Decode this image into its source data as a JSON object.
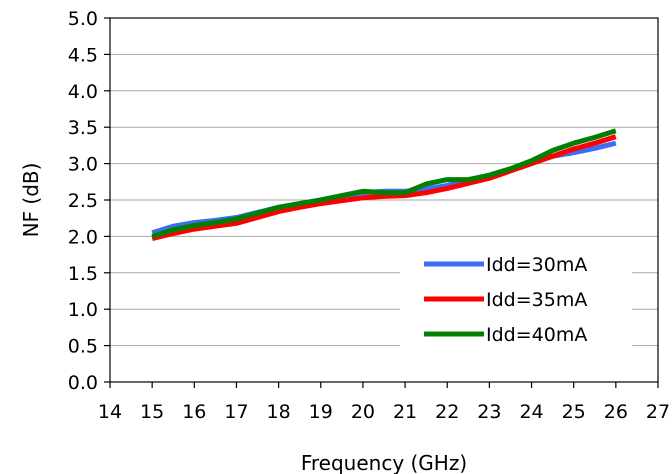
{
  "chart_data": {
    "type": "line",
    "title": "",
    "xlabel": "Frequency (GHz)",
    "ylabel": "NF (dB)",
    "xlim": [
      14,
      27
    ],
    "ylim": [
      0.0,
      5.0
    ],
    "x_ticks": [
      "14",
      "15",
      "16",
      "17",
      "18",
      "19",
      "20",
      "21",
      "22",
      "23",
      "24",
      "25",
      "26",
      "27"
    ],
    "y_ticks": [
      "0.0",
      "0.5",
      "1.0",
      "1.5",
      "2.0",
      "2.5",
      "3.0",
      "3.5",
      "4.0",
      "4.5",
      "5.0"
    ],
    "grid": "horizontal",
    "legend_position": "bottom-right",
    "series": [
      {
        "name": "Idd=30mA",
        "color": "#3b6ef5",
        "x": [
          15,
          15.5,
          16,
          16.5,
          17,
          17.5,
          18,
          18.5,
          19,
          19.5,
          20,
          20.5,
          21,
          21.5,
          22,
          22.5,
          23,
          23.5,
          24,
          24.5,
          25,
          25.5,
          26
        ],
        "y": [
          2.05,
          2.14,
          2.19,
          2.22,
          2.26,
          2.33,
          2.4,
          2.45,
          2.5,
          2.55,
          2.6,
          2.62,
          2.62,
          2.65,
          2.7,
          2.77,
          2.83,
          2.92,
          3.02,
          3.1,
          3.15,
          3.21,
          3.28
        ]
      },
      {
        "name": "Idd=35mA",
        "color": "#ff0000",
        "x": [
          15,
          15.5,
          16,
          16.5,
          17,
          17.5,
          18,
          18.5,
          19,
          19.5,
          20,
          20.5,
          21,
          21.5,
          22,
          22.5,
          23,
          23.5,
          24,
          24.5,
          25,
          25.5,
          26
        ],
        "y": [
          1.97,
          2.04,
          2.1,
          2.14,
          2.18,
          2.26,
          2.34,
          2.4,
          2.45,
          2.49,
          2.53,
          2.55,
          2.56,
          2.6,
          2.66,
          2.73,
          2.8,
          2.9,
          3.0,
          3.1,
          3.2,
          3.28,
          3.37
        ]
      },
      {
        "name": "Idd=40mA",
        "color": "#008000",
        "x": [
          15,
          15.5,
          16,
          16.5,
          17,
          17.5,
          18,
          18.5,
          19,
          19.5,
          20,
          20.5,
          21,
          21.5,
          22,
          22.5,
          23,
          23.5,
          24,
          24.5,
          25,
          25.5,
          26
        ],
        "y": [
          2.0,
          2.09,
          2.15,
          2.19,
          2.24,
          2.32,
          2.4,
          2.45,
          2.5,
          2.56,
          2.62,
          2.6,
          2.6,
          2.72,
          2.78,
          2.78,
          2.84,
          2.93,
          3.04,
          3.18,
          3.28,
          3.36,
          3.45
        ]
      }
    ]
  }
}
